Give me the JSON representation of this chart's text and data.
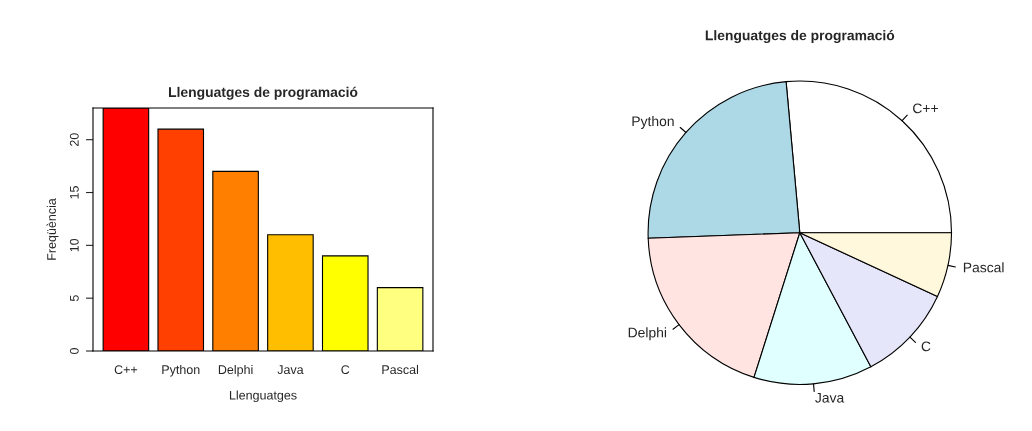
{
  "chart_data": [
    {
      "type": "bar",
      "title": "Llenguatges de programació",
      "xlabel": "Llenguatges",
      "ylabel": "Freqüència",
      "categories": [
        "C++",
        "Python",
        "Delphi",
        "Java",
        "C",
        "Pascal"
      ],
      "values": [
        23,
        21,
        17,
        11,
        9,
        6
      ],
      "colors": [
        "#ff0000",
        "#ff4000",
        "#ff8000",
        "#ffbf00",
        "#ffff00",
        "#ffff80"
      ],
      "ylim": [
        0,
        23
      ],
      "yticks": [
        0,
        5,
        10,
        15,
        20
      ],
      "grid": false
    },
    {
      "type": "pie",
      "title": "Llenguatges de programació",
      "categories": [
        "C++",
        "Python",
        "Delphi",
        "Java",
        "C",
        "Pascal"
      ],
      "values": [
        26.44,
        24.14,
        19.54,
        12.64,
        10.34,
        6.9
      ],
      "colors": [
        "#ffffff",
        "#add8e6",
        "#ffe4e1",
        "#e0ffff",
        "#e6e6fa",
        "#fff8dc"
      ]
    }
  ]
}
